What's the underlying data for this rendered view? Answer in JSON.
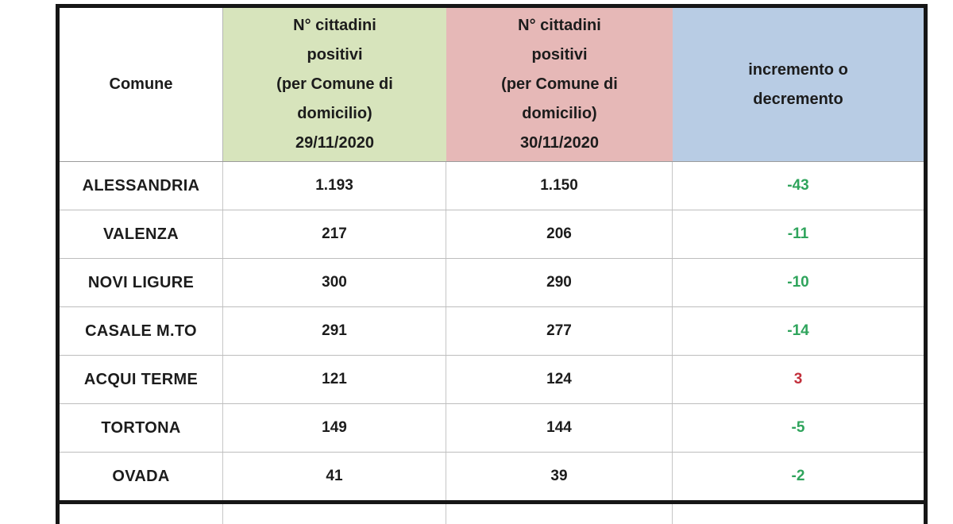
{
  "table": {
    "columns": [
      {
        "key": "comune",
        "label": "Comune",
        "bg": "#ffffff"
      },
      {
        "key": "pos_29",
        "label": "N° cittadini\npositivi\n(per Comune di\ndomicilio)\n29/11/2020",
        "bg": "#d7e4bc"
      },
      {
        "key": "pos_30",
        "label": "N° cittadini\npositivi\n(per Comune di\ndomicilio)\n30/11/2020",
        "bg": "#e6b8b7"
      },
      {
        "key": "delta",
        "label": "incremento o\ndecremento",
        "bg": "#b8cce4"
      }
    ],
    "rows": [
      {
        "comune": "ALESSANDRIA",
        "pos_29": "1.193",
        "pos_30": "1.150",
        "delta": "-43"
      },
      {
        "comune": "VALENZA",
        "pos_29": "217",
        "pos_30": "206",
        "delta": "-11"
      },
      {
        "comune": "NOVI LIGURE",
        "pos_29": "300",
        "pos_30": "290",
        "delta": "-10"
      },
      {
        "comune": "CASALE M.TO",
        "pos_29": "291",
        "pos_30": "277",
        "delta": "-14"
      },
      {
        "comune": "ACQUI TERME",
        "pos_29": "121",
        "pos_30": "124",
        "delta": "3"
      },
      {
        "comune": "TORTONA",
        "pos_29": "149",
        "pos_30": "144",
        "delta": "-5"
      },
      {
        "comune": "OVADA",
        "pos_29": "41",
        "pos_30": "39",
        "delta": "-2"
      }
    ],
    "colors": {
      "decrease_text": "#2fa45c",
      "increase_text": "#c2303c",
      "header_green_bg": "#d7e4bc",
      "header_pink_bg": "#e6b8b7",
      "header_blue_bg": "#b8cce4",
      "border": "#161616"
    }
  },
  "chart_data": {
    "type": "table",
    "title": "N° cittadini positivi per Comune di domicilio — confronto 29/11/2020 vs 30/11/2020",
    "columns": [
      "Comune",
      "N° cittadini positivi (per Comune di domicilio) 29/11/2020",
      "N° cittadini positivi (per Comune di domicilio) 30/11/2020",
      "incremento o decremento"
    ],
    "rows": [
      [
        "ALESSANDRIA",
        1193,
        1150,
        -43
      ],
      [
        "VALENZA",
        217,
        206,
        -11
      ],
      [
        "NOVI LIGURE",
        300,
        290,
        -10
      ],
      [
        "CASALE M.TO",
        291,
        277,
        -14
      ],
      [
        "ACQUI TERME",
        121,
        124,
        3
      ],
      [
        "TORTONA",
        149,
        144,
        -5
      ],
      [
        "OVADA",
        41,
        39,
        -2
      ]
    ],
    "notes": "Negative deltas rendered in green, positive delta in red; table clipped at bottom edge after a thick black rule."
  }
}
